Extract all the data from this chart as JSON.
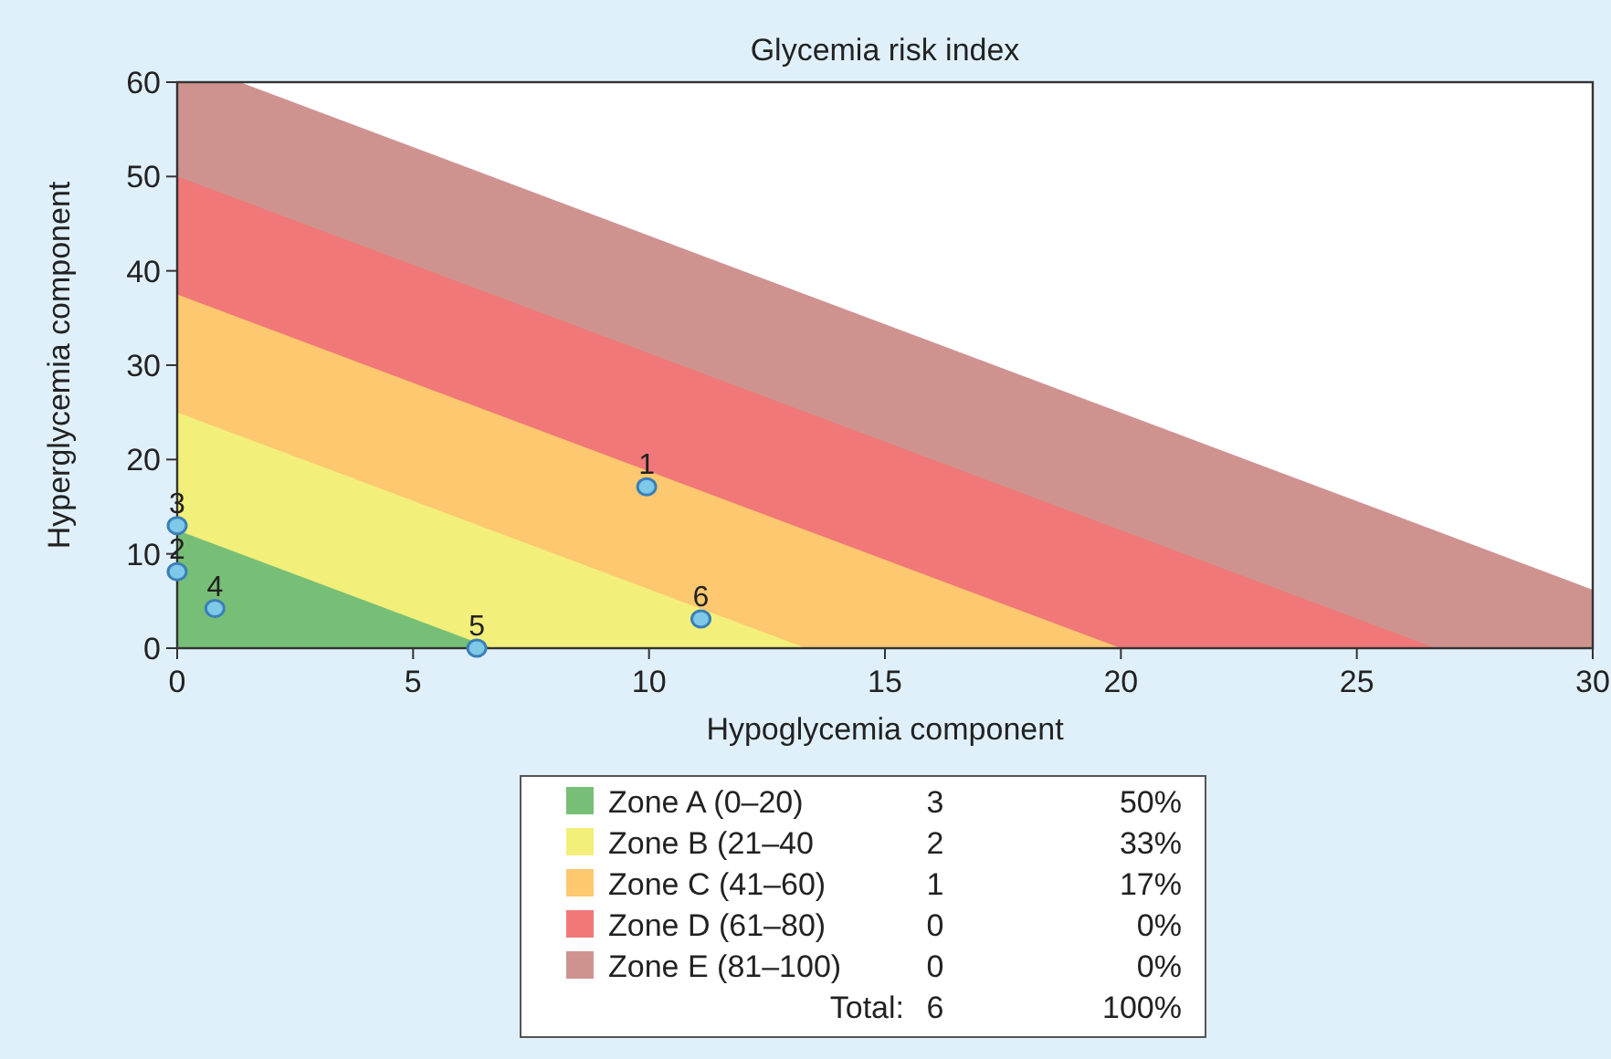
{
  "chart_data": {
    "type": "area",
    "title": "Glycemia risk index",
    "xlabel": "Hypoglycemia component",
    "ylabel": "Hyperglycemia component",
    "xlim": [
      0,
      30
    ],
    "xticks": [
      0,
      5,
      10,
      15,
      20,
      25,
      30
    ],
    "ylim": [
      0,
      60
    ],
    "yticks": [
      0,
      10,
      20,
      30,
      40,
      50,
      60
    ],
    "grid": false,
    "legend": "bottom",
    "series": [
      {
        "name": "Zone A (0–20)",
        "color": "#77bf77",
        "x": [
          0,
          6.67,
          30
        ],
        "values": [
          12.5,
          0,
          0
        ]
      },
      {
        "name": "Zone B (21–40",
        "color": "#f2ef7a",
        "x": [
          0,
          13.33,
          30
        ],
        "values": [
          25,
          0,
          0
        ]
      },
      {
        "name": "Zone C (41–60)",
        "color": "#fdc870",
        "x": [
          0,
          20,
          30
        ],
        "values": [
          37.5,
          0,
          0
        ]
      },
      {
        "name": "Zone D (61–80)",
        "color": "#f07878",
        "x": [
          0,
          26.67,
          30
        ],
        "values": [
          50,
          0,
          0
        ]
      },
      {
        "name": "Zone E (81–100)",
        "color": "#cf938f",
        "x": [
          0,
          1.33,
          30
        ],
        "values": [
          60,
          60,
          6.2
        ]
      },
      {
        "type": "scatter",
        "color": "#7ec8e8",
        "marker": "circle",
        "x": [
          9.95,
          0,
          0,
          0.8,
          6.35,
          11.1
        ],
        "values": [
          17.1,
          8.1,
          13,
          4.2,
          0,
          3.1
        ]
      }
    ],
    "annotations": [
      {
        "text": "1",
        "x": 9.95,
        "y": 17.1
      },
      {
        "text": "2",
        "x": 0,
        "y": 8.1
      },
      {
        "text": "3",
        "x": 0,
        "y": 13
      },
      {
        "text": "4",
        "x": 0.8,
        "y": 4.2
      },
      {
        "text": "5",
        "x": 6.35,
        "y": 0
      },
      {
        "text": "6",
        "x": 11.1,
        "y": 3.1
      },
      "3",
      "50%",
      "2",
      "33%",
      "1",
      "17%",
      "0",
      "0%",
      "0",
      "0%",
      "Total:",
      "6",
      "100%"
    ]
  }
}
